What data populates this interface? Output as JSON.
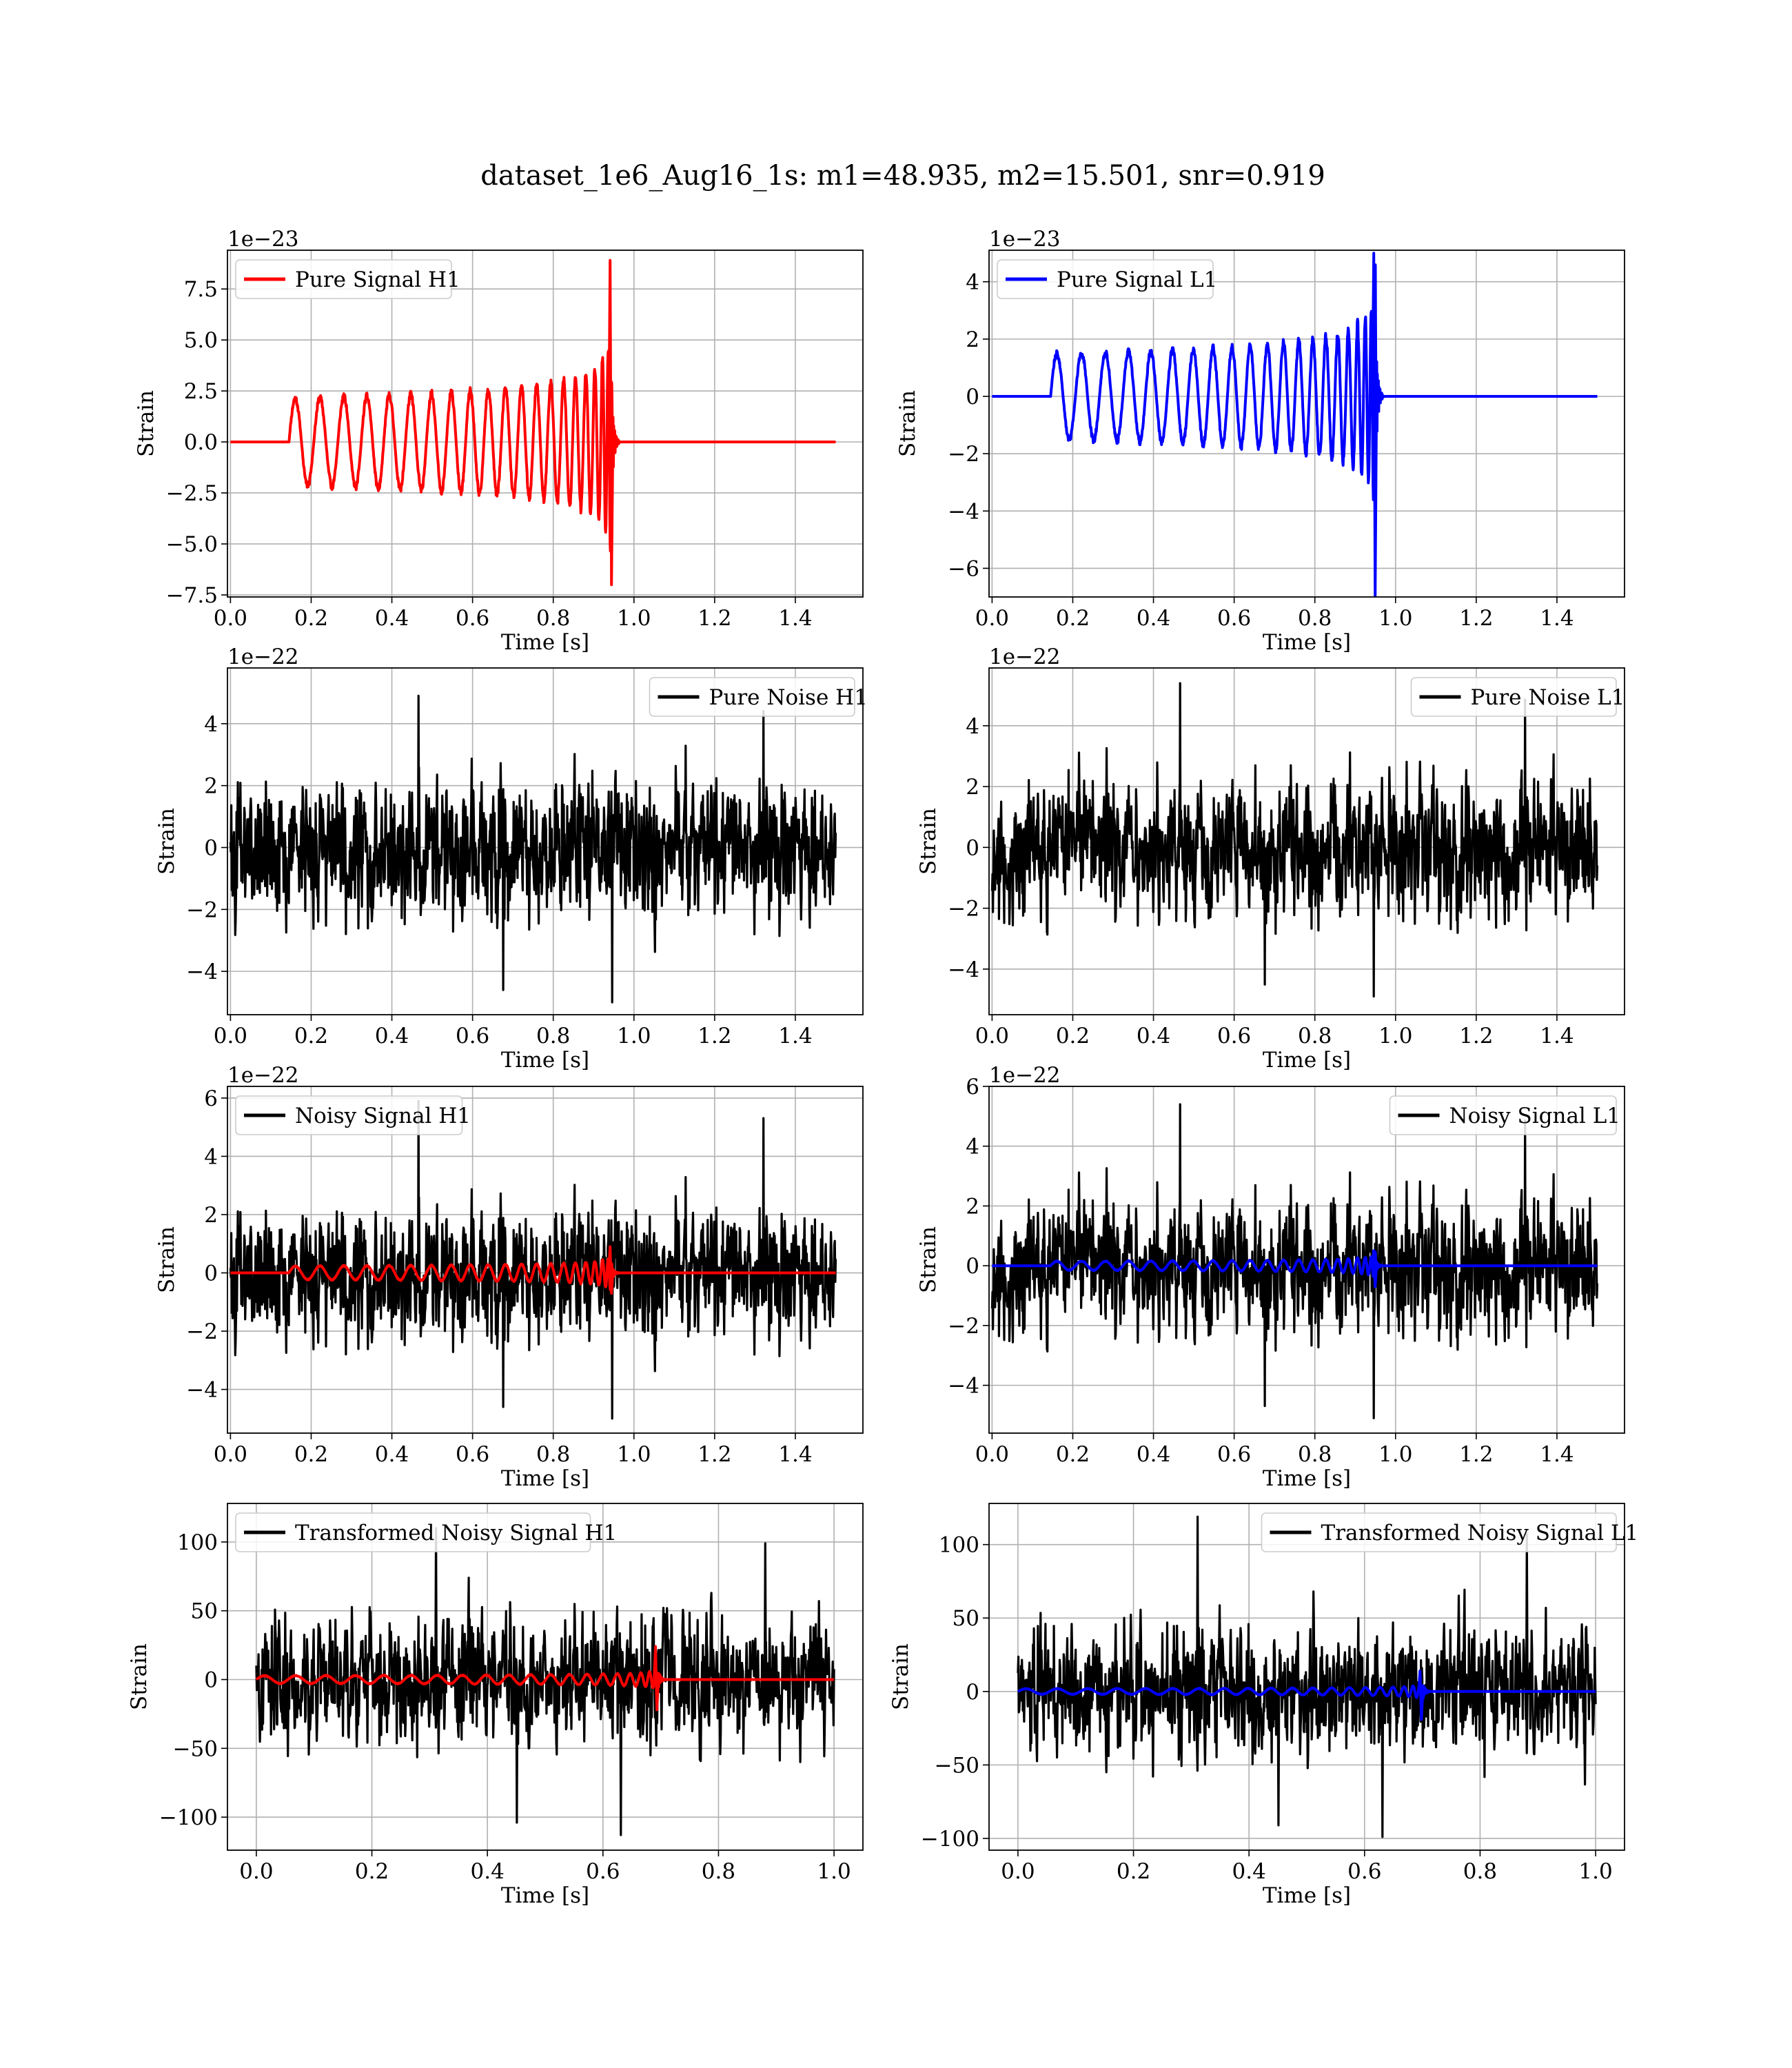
{
  "figure": {
    "title": "dataset_1e6_Aug16_1s: m1=48.935, m2=15.501, snr=0.919"
  },
  "colors": {
    "h1": "#ff0000",
    "l1": "#0000ff",
    "noise": "#000000",
    "grid": "#b0b0b0"
  },
  "chart_data": [
    {
      "id": "p00",
      "type": "line",
      "row": 0,
      "col": 0,
      "xlabel": "Time [s]",
      "ylabel": "Strain",
      "scale_label": "1e−23",
      "xlim": [
        -0.0075,
        1.5675
      ],
      "ylim": [
        -7.6,
        9.4
      ],
      "xticks": [
        0.0,
        0.2,
        0.4,
        0.6,
        0.8,
        1.0,
        1.2,
        1.4
      ],
      "xtick_labels": [
        "0.0",
        "0.2",
        "0.4",
        "0.6",
        "0.8",
        "1.0",
        "1.2",
        "1.4"
      ],
      "yticks": [
        -7.5,
        -5.0,
        -2.5,
        0.0,
        2.5,
        5.0,
        7.5
      ],
      "ytick_labels": [
        "−7.5",
        "−5.0",
        "−2.5",
        "0.0",
        "2.5",
        "5.0",
        "7.5"
      ],
      "legend": {
        "placement": "upper-left",
        "label": "Pure Signal H1",
        "color": "#ff0000"
      },
      "series": [
        {
          "name": "Pure Signal H1",
          "kind": "chirp",
          "color": "#ff0000",
          "x_start": 0.0,
          "x_end": 1.5,
          "onset": 0.145,
          "merger": 0.945,
          "f_start": 16,
          "amp_start": 2.3,
          "amp_peak": 8.9,
          "amp_trough": -7.0,
          "seed": 11,
          "ringdown": 0.02
        }
      ]
    },
    {
      "id": "p01",
      "type": "line",
      "row": 0,
      "col": 1,
      "xlabel": "Time [s]",
      "ylabel": "Strain",
      "scale_label": "1e−23",
      "xlim": [
        -0.0075,
        1.5675
      ],
      "ylim": [
        -7.0,
        5.1
      ],
      "xticks": [
        0.0,
        0.2,
        0.4,
        0.6,
        0.8,
        1.0,
        1.2,
        1.4
      ],
      "xtick_labels": [
        "0.0",
        "0.2",
        "0.4",
        "0.6",
        "0.8",
        "1.0",
        "1.2",
        "1.4"
      ],
      "yticks": [
        -6,
        -4,
        -2,
        0,
        2,
        4
      ],
      "ytick_labels": [
        "−6",
        "−4",
        "−2",
        "0",
        "2",
        "4"
      ],
      "legend": {
        "placement": "upper-left",
        "label": "Pure Signal L1",
        "color": "#0000ff"
      },
      "series": [
        {
          "name": "Pure Signal L1",
          "kind": "chirp",
          "color": "#0000ff",
          "x_start": 0.0,
          "x_end": 1.5,
          "onset": 0.145,
          "merger": 0.95,
          "f_start": 16,
          "amp_start": 1.6,
          "amp_peak": 5.0,
          "amp_trough": -7.0,
          "seed": 12,
          "ringdown": 0.02
        }
      ]
    },
    {
      "id": "p10",
      "type": "line",
      "row": 1,
      "col": 0,
      "xlabel": "Time [s]",
      "ylabel": "Strain",
      "scale_label": "1e−22",
      "xlim": [
        -0.0075,
        1.5675
      ],
      "ylim": [
        -5.4,
        5.8
      ],
      "xticks": [
        0.0,
        0.2,
        0.4,
        0.6,
        0.8,
        1.0,
        1.2,
        1.4
      ],
      "xtick_labels": [
        "0.0",
        "0.2",
        "0.4",
        "0.6",
        "0.8",
        "1.0",
        "1.2",
        "1.4"
      ],
      "yticks": [
        -4,
        -2,
        0,
        2,
        4
      ],
      "ytick_labels": [
        "−4",
        "−2",
        "0",
        "2",
        "4"
      ],
      "legend": {
        "placement": "upper-right",
        "label": "Pure Noise H1",
        "color": "#000000"
      },
      "series": [
        {
          "name": "Pure Noise H1",
          "kind": "noise",
          "color": "#000000",
          "x_start": 0.0,
          "x_end": 1.5,
          "points": 1400,
          "min": -5.0,
          "max": 4.9,
          "sigma": 1.6,
          "seed": 101
        }
      ]
    },
    {
      "id": "p11",
      "type": "line",
      "row": 1,
      "col": 1,
      "xlabel": "Time [s]",
      "ylabel": "Strain",
      "scale_label": "1e−22",
      "xlim": [
        -0.0075,
        1.5675
      ],
      "ylim": [
        -5.5,
        5.9
      ],
      "xticks": [
        0.0,
        0.2,
        0.4,
        0.6,
        0.8,
        1.0,
        1.2,
        1.4
      ],
      "xtick_labels": [
        "0.0",
        "0.2",
        "0.4",
        "0.6",
        "0.8",
        "1.0",
        "1.2",
        "1.4"
      ],
      "yticks": [
        -4,
        -2,
        0,
        2,
        4
      ],
      "ytick_labels": [
        "−4",
        "−2",
        "0",
        "2",
        "4"
      ],
      "legend": {
        "placement": "upper-right",
        "label": "Pure Noise L1",
        "color": "#000000"
      },
      "series": [
        {
          "name": "Pure Noise L1",
          "kind": "noise",
          "color": "#000000",
          "x_start": 0.0,
          "x_end": 1.5,
          "points": 1400,
          "min": -4.9,
          "max": 5.4,
          "sigma": 1.6,
          "seed": 202
        }
      ]
    },
    {
      "id": "p20",
      "type": "line",
      "row": 2,
      "col": 0,
      "xlabel": "Time [s]",
      "ylabel": "Strain",
      "scale_label": "1e−22",
      "xlim": [
        -0.0075,
        1.5675
      ],
      "ylim": [
        -5.5,
        6.4
      ],
      "xticks": [
        0.0,
        0.2,
        0.4,
        0.6,
        0.8,
        1.0,
        1.2,
        1.4
      ],
      "xtick_labels": [
        "0.0",
        "0.2",
        "0.4",
        "0.6",
        "0.8",
        "1.0",
        "1.2",
        "1.4"
      ],
      "yticks": [
        -4,
        -2,
        0,
        2,
        4,
        6
      ],
      "ytick_labels": [
        "−4",
        "−2",
        "0",
        "2",
        "4",
        "6"
      ],
      "legend": {
        "placement": "upper-left",
        "label": "Noisy Signal H1",
        "color": "#000000"
      },
      "series": [
        {
          "name": "Noisy Signal H1",
          "kind": "noise",
          "color": "#000000",
          "x_start": 0.0,
          "x_end": 1.5,
          "points": 1400,
          "min": -5.0,
          "max": 5.9,
          "sigma": 1.6,
          "seed": 101
        },
        {
          "kind": "chirp",
          "color": "#ff0000",
          "x_start": 0.0,
          "x_end": 1.5,
          "onset": 0.145,
          "merger": 0.945,
          "f_start": 16,
          "amp_start": 0.25,
          "amp_peak": 0.9,
          "amp_trough": -0.7,
          "seed": 11,
          "ringdown": 0.02
        }
      ]
    },
    {
      "id": "p21",
      "type": "line",
      "row": 2,
      "col": 1,
      "xlabel": "Time [s]",
      "ylabel": "Strain",
      "scale_label": "1e−22",
      "xlim": [
        -0.0075,
        1.5675
      ],
      "ylim": [
        -5.6,
        6.0
      ],
      "xticks": [
        0.0,
        0.2,
        0.4,
        0.6,
        0.8,
        1.0,
        1.2,
        1.4
      ],
      "xtick_labels": [
        "0.0",
        "0.2",
        "0.4",
        "0.6",
        "0.8",
        "1.0",
        "1.2",
        "1.4"
      ],
      "yticks": [
        -4,
        -2,
        0,
        2,
        4,
        6
      ],
      "ytick_labels": [
        "−4",
        "−2",
        "0",
        "2",
        "4",
        "6"
      ],
      "legend": {
        "placement": "upper-right",
        "label": "Noisy Signal L1",
        "color": "#000000"
      },
      "series": [
        {
          "name": "Noisy Signal L1",
          "kind": "noise",
          "color": "#000000",
          "x_start": 0.0,
          "x_end": 1.5,
          "points": 1400,
          "min": -5.1,
          "max": 5.4,
          "sigma": 1.6,
          "seed": 202
        },
        {
          "kind": "chirp",
          "color": "#0000ff",
          "x_start": 0.0,
          "x_end": 1.5,
          "onset": 0.145,
          "merger": 0.95,
          "f_start": 16,
          "amp_start": 0.16,
          "amp_peak": 0.5,
          "amp_trough": -0.7,
          "seed": 12,
          "ringdown": 0.02
        }
      ]
    },
    {
      "id": "p30",
      "type": "line",
      "row": 3,
      "col": 0,
      "xlabel": "Time [s]",
      "ylabel": "Strain",
      "scale_label": "",
      "xlim": [
        -0.05,
        1.05
      ],
      "ylim": [
        -124,
        128
      ],
      "xticks": [
        0.0,
        0.2,
        0.4,
        0.6,
        0.8,
        1.0
      ],
      "xtick_labels": [
        "0.0",
        "0.2",
        "0.4",
        "0.6",
        "0.8",
        "1.0"
      ],
      "yticks": [
        -100,
        -50,
        0,
        50,
        100
      ],
      "ytick_labels": [
        "−100",
        "−50",
        "0",
        "50",
        "100"
      ],
      "legend": {
        "placement": "upper-left",
        "label": "Transformed Noisy Signal H1",
        "color": "#000000"
      },
      "series": [
        {
          "name": "Transformed Noisy Signal H1",
          "kind": "noise",
          "color": "#000000",
          "x_start": 0.0,
          "x_end": 1.0,
          "points": 1300,
          "min": -113,
          "max": 110,
          "sigma": 32,
          "seed": 303
        },
        {
          "kind": "chirp",
          "color": "#ff0000",
          "x_start": 0.0,
          "x_end": 1.0,
          "onset": 0.0,
          "merger": 0.695,
          "f_start": 18,
          "amp_start": 3,
          "amp_peak": 24,
          "amp_trough": -22,
          "seed": 13,
          "ringdown": 0.015
        }
      ]
    },
    {
      "id": "p31",
      "type": "line",
      "row": 3,
      "col": 1,
      "xlabel": "Time [s]",
      "ylabel": "Strain",
      "scale_label": "",
      "xlim": [
        -0.05,
        1.05
      ],
      "ylim": [
        -108,
        128
      ],
      "xticks": [
        0.0,
        0.2,
        0.4,
        0.6,
        0.8,
        1.0
      ],
      "xtick_labels": [
        "0.0",
        "0.2",
        "0.4",
        "0.6",
        "0.8",
        "1.0"
      ],
      "yticks": [
        -100,
        -50,
        0,
        50,
        100
      ],
      "ytick_labels": [
        "−100",
        "−50",
        "0",
        "50",
        "100"
      ],
      "legend": {
        "placement": "upper-right",
        "label": "Transformed Noisy Signal L1",
        "color": "#000000"
      },
      "series": [
        {
          "name": "Transformed Noisy Signal L1",
          "kind": "noise",
          "color": "#000000",
          "x_start": 0.0,
          "x_end": 1.0,
          "points": 1300,
          "min": -99,
          "max": 119,
          "sigma": 30,
          "seed": 404
        },
        {
          "kind": "chirp",
          "color": "#0000ff",
          "x_start": 0.0,
          "x_end": 1.0,
          "onset": 0.0,
          "merger": 0.7,
          "f_start": 18,
          "amp_start": 2,
          "amp_peak": 14,
          "amp_trough": -19,
          "seed": 14,
          "ringdown": 0.015
        }
      ]
    }
  ]
}
